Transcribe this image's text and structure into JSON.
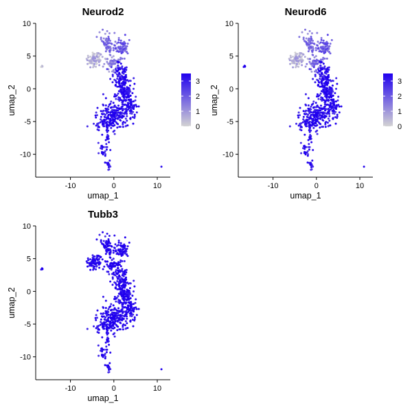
{
  "chart_data": [
    {
      "type": "scatter",
      "title": "Neurod2",
      "xlabel": "umap_1",
      "ylabel": "umap_2",
      "xlim": [
        -18,
        13
      ],
      "ylim": [
        -13.5,
        10
      ],
      "x_ticks": [
        -10,
        0,
        10
      ],
      "y_ticks": [
        -10,
        -5,
        0,
        5,
        10
      ],
      "grid": false,
      "legend": {
        "position": "right",
        "type": "colorbar",
        "range": [
          0,
          3.5
        ],
        "ticks": [
          0,
          1,
          2,
          3
        ],
        "low_color": "#d3d3d3",
        "high_color": "#2000ee"
      },
      "expression": {
        "high": "central elongated cluster (umap_2 from about -6 to 3)",
        "medium": "upper loop near (0, 7)",
        "low": "left arm near (-5, 4) and isolated point near (-16.5, 3.5)"
      }
    },
    {
      "type": "scatter",
      "title": "Neurod6",
      "xlabel": "umap_1",
      "ylabel": "umap_2",
      "xlim": [
        -18,
        13
      ],
      "ylim": [
        -13.5,
        10
      ],
      "x_ticks": [
        -10,
        0,
        10
      ],
      "y_ticks": [
        -10,
        -5,
        0,
        5,
        10
      ],
      "grid": false,
      "legend": {
        "position": "right",
        "type": "colorbar",
        "range": [
          0,
          3.5
        ],
        "ticks": [
          0,
          1,
          2,
          3
        ],
        "low_color": "#d3d3d3",
        "high_color": "#2000ee"
      },
      "expression": {
        "high": "central elongated cluster and isolated point near (-16.5, 3.5)",
        "medium": "upper loop near (0, 7)",
        "low": "left arm near (-5, 4)"
      }
    },
    {
      "type": "scatter",
      "title": "Tubb3",
      "xlabel": "umap_1",
      "ylabel": "umap_2",
      "xlim": [
        -18,
        13
      ],
      "ylim": [
        -13.5,
        10
      ],
      "x_ticks": [
        -10,
        0,
        10
      ],
      "y_ticks": [
        -10,
        -5,
        0,
        5,
        10
      ],
      "grid": false,
      "legend": {
        "position": "none"
      },
      "expression": {
        "high": "nearly all cells",
        "medium": "",
        "low": ""
      }
    }
  ],
  "colors": {
    "low": "#d3d3d3",
    "mid": "#8c6fe8",
    "high": "#2000ee"
  }
}
